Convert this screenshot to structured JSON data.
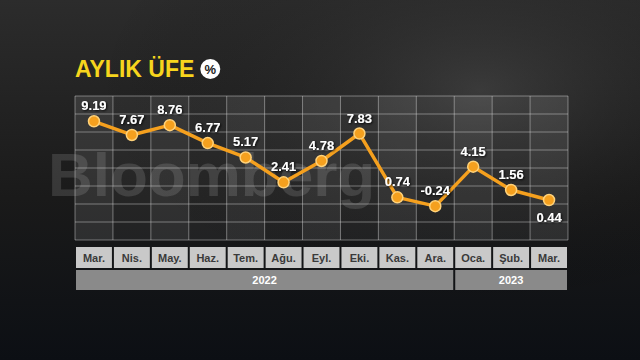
{
  "chart_data": {
    "type": "line",
    "title": "AYLIK ÜFE",
    "unit_badge": "%",
    "watermark": "Bloomberg",
    "categories": [
      "Mar.",
      "Nis.",
      "May.",
      "Haz.",
      "Tem.",
      "Ağu.",
      "Eyl.",
      "Eki.",
      "Kas.",
      "Ara.",
      "Oca.",
      "Şub.",
      "Mar."
    ],
    "category_groups": [
      {
        "label": "2022",
        "count": 10
      },
      {
        "label": "2023",
        "count": 3
      }
    ],
    "values": [
      9.19,
      7.67,
      8.76,
      6.77,
      5.17,
      2.41,
      4.78,
      7.83,
      0.74,
      -0.24,
      4.15,
      1.56,
      0.44
    ],
    "color": "#f5a01e",
    "marker": "circle",
    "line_style": "solid",
    "ylim": [
      -4,
      12
    ],
    "yticks": [
      -4,
      -2,
      0,
      2,
      4,
      6,
      8,
      10,
      12
    ],
    "grid": true,
    "data_labels": true,
    "tick_labels": "x"
  }
}
